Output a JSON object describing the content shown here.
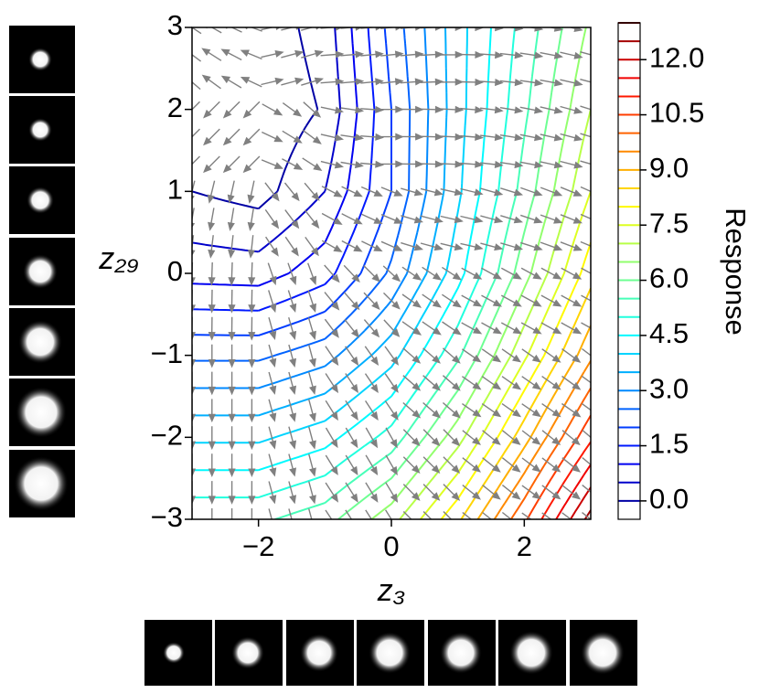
{
  "chart_data": {
    "type": "contour",
    "xlabel": "z₃",
    "ylabel": "z₂₉",
    "colorbar_label": "Response",
    "colormap": "jet",
    "x": [
      -3,
      -2,
      -1,
      0,
      1,
      2,
      3
    ],
    "y": [
      -3,
      -2,
      -1,
      0,
      1,
      2,
      3
    ],
    "z": [
      [
        5.4,
        5.4,
        5.8,
        6.8,
        8.4,
        10.4,
        12.7
      ],
      [
        3.9,
        3.9,
        4.3,
        5.2,
        6.8,
        8.8,
        10.9
      ],
      [
        2.4,
        2.4,
        2.8,
        3.8,
        5.4,
        7.4,
        9.4
      ],
      [
        0.8,
        0.75,
        1.3,
        2.6,
        4.3,
        6.3,
        8.3
      ],
      [
        0.0,
        -0.2,
        0.5,
        2.0,
        3.9,
        5.7,
        7.5
      ],
      [
        -0.2,
        -0.4,
        0.05,
        2.0,
        3.8,
        5.4,
        7.0
      ],
      [
        0.0,
        -0.3,
        0.2,
        2.2,
        3.8,
        5.2,
        6.6
      ]
    ],
    "levels": [
      0,
      0.5,
      1,
      1.5,
      2,
      2.5,
      3,
      3.5,
      4,
      4.5,
      5,
      5.5,
      6,
      6.5,
      7,
      7.5,
      8,
      8.5,
      9,
      9.5,
      10,
      10.5,
      11,
      11.5,
      12,
      12.5,
      13
    ],
    "quiver": true,
    "xlim": [
      -3,
      3
    ],
    "ylim": [
      -3,
      3
    ],
    "xticks": [
      {
        "value": -2,
        "label": "−2"
      },
      0,
      2
    ],
    "yticks": [
      {
        "value": -3,
        "label": "−3"
      },
      {
        "value": -2,
        "label": "−2"
      },
      {
        "value": -1,
        "label": "−1"
      },
      0,
      1,
      2,
      3
    ],
    "clim": [
      -0.5,
      13
    ],
    "cticks": [
      {
        "value": 0,
        "label": "0.0"
      },
      {
        "value": 1.5,
        "label": "1.5"
      },
      {
        "value": 3,
        "label": "3.0"
      },
      {
        "value": 4.5,
        "label": "4.5"
      },
      {
        "value": 6,
        "label": "6.0"
      },
      {
        "value": 7.5,
        "label": "7.5"
      },
      {
        "value": 9,
        "label": "9.0"
      },
      {
        "value": 10.5,
        "label": "10.5"
      },
      {
        "value": 12,
        "label": "12.0"
      }
    ]
  }
}
